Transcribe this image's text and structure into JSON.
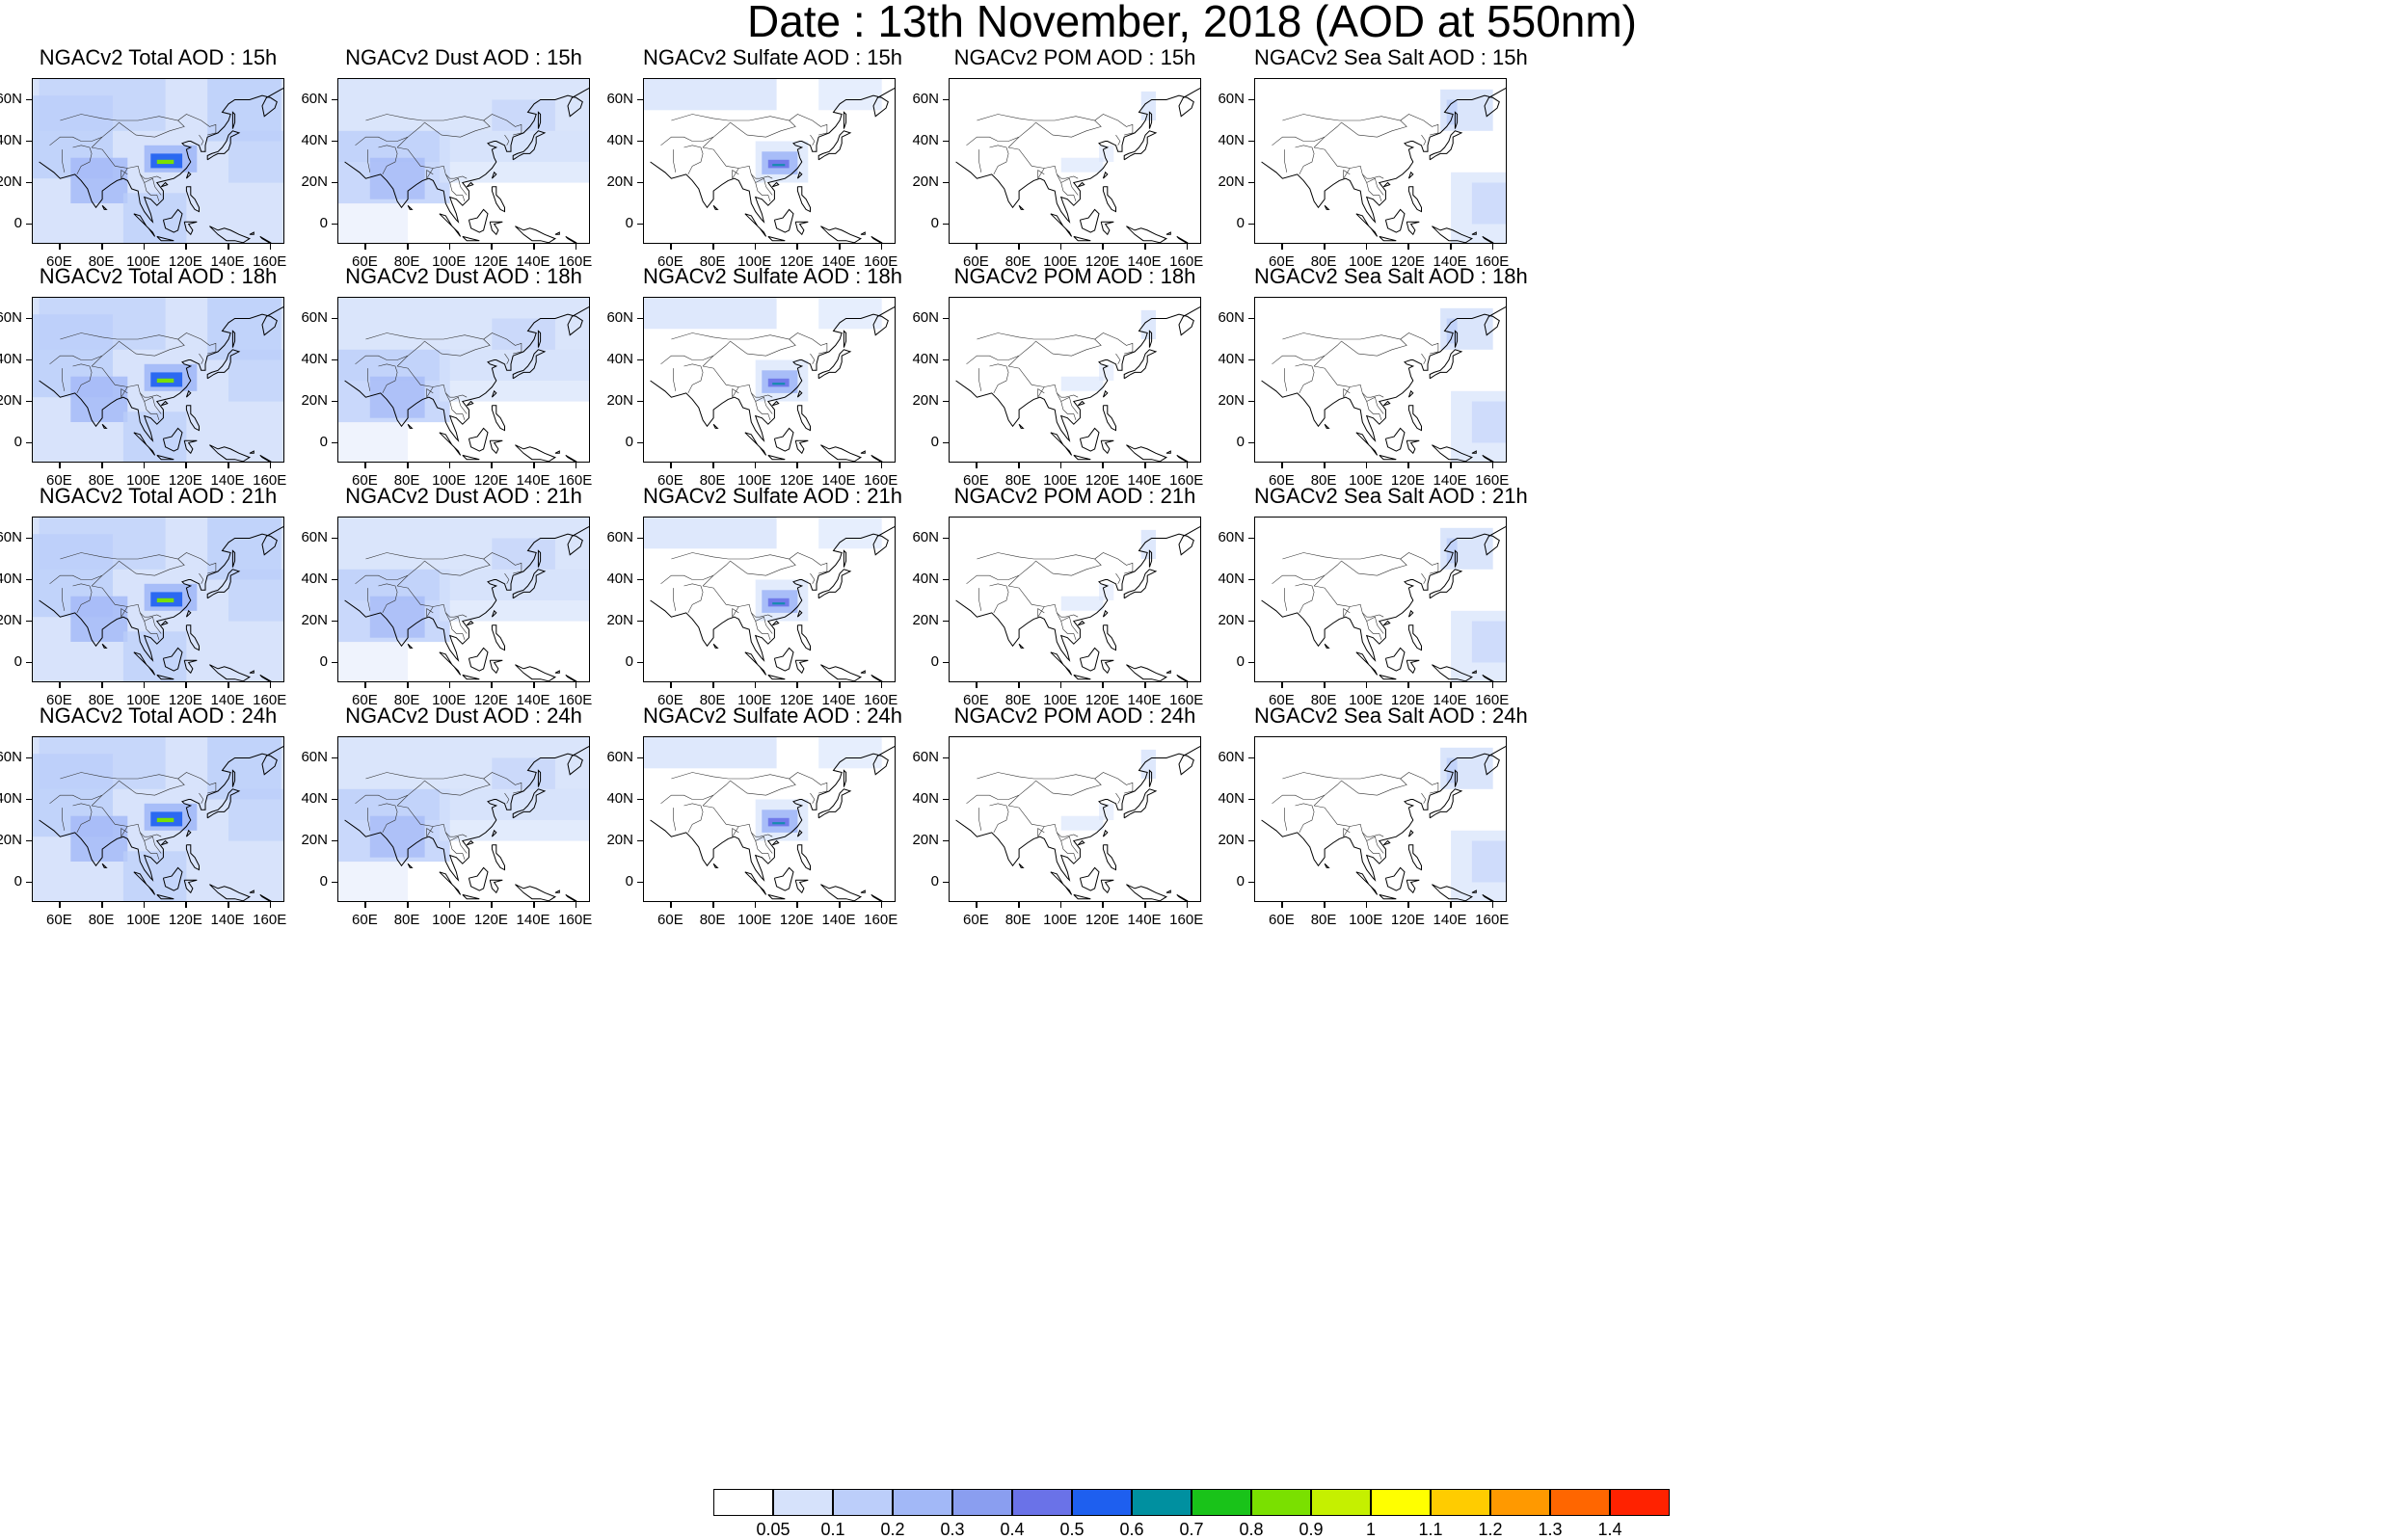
{
  "title": "Date : 13th November, 2018 (AOD at 550nm)",
  "panel_titles": [
    [
      "NGACv2 Total AOD : 15h",
      "NGACv2 Dust AOD : 15h",
      "NGACv2 Sulfate AOD : 15h",
      "NGACv2 POM AOD : 15h",
      "NGACv2 Sea Salt AOD : 15h"
    ],
    [
      "NGACv2 Total AOD : 18h",
      "NGACv2 Dust AOD : 18h",
      "NGACv2 Sulfate AOD : 18h",
      "NGACv2 POM AOD : 18h",
      "NGACv2 Sea Salt AOD : 18h"
    ],
    [
      "NGACv2 Total AOD : 21h",
      "NGACv2 Dust AOD : 21h",
      "NGACv2 Sulfate AOD : 21h",
      "NGACv2 POM AOD : 21h",
      "NGACv2 Sea Salt AOD : 21h"
    ],
    [
      "NGACv2 Total AOD : 24h",
      "NGACv2 Dust AOD : 24h",
      "NGACv2 Sulfate AOD : 24h",
      "NGACv2 POM AOD : 24h",
      "NGACv2 Sea Salt  AOD : 24h"
    ]
  ],
  "lat_labels": [
    "60N",
    "40N",
    "20N",
    "0"
  ],
  "lon_labels": [
    "60E",
    "80E",
    "100E",
    "120E",
    "140E",
    "160E"
  ],
  "colorbar": {
    "labels": [
      "0.05",
      "0.1",
      "0.2",
      "0.3",
      "0.4",
      "0.5",
      "0.6",
      "0.7",
      "0.8",
      "0.9",
      "1",
      "1.1",
      "1.2",
      "1.3",
      "1.4"
    ],
    "colors": [
      "#ffffff",
      "#d6e2fb",
      "#bccefa",
      "#a2b8f7",
      "#8a9ef0",
      "#6a72e8",
      "#1e5fef",
      "#0090a0",
      "#19c319",
      "#7ae000",
      "#c5f000",
      "#ffff00",
      "#ffcc00",
      "#ff9900",
      "#ff6600",
      "#ff2200"
    ]
  }
}
